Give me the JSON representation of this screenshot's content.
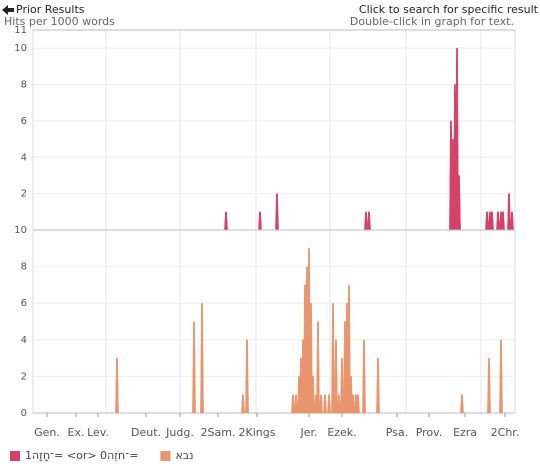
{
  "toolbar": {
    "back": "Prior Results",
    "hint": "Click to search for specific result",
    "note": "Double-click in graph for text."
  },
  "chart_data": [
    {
      "type": "spike",
      "ylabel": "Hits per 1000 words",
      "xlim": [
        0,
        482
      ],
      "ylim": [
        0,
        11
      ],
      "yticks": [
        2,
        4,
        6,
        8,
        10,
        11
      ],
      "xgrid": [
        73,
        147,
        223,
        297,
        373,
        448
      ],
      "series": [
        {
          "name": "1־חָזָה= <or> 0־חֹזֶה=",
          "color": "#d6416b",
          "x": [
            193,
            227,
            244,
            333,
            336,
            418,
            420,
            422,
            424,
            426,
            454,
            457,
            459,
            465,
            468,
            470,
            476,
            479
          ],
          "values": [
            1,
            1,
            2,
            1,
            1,
            6,
            5,
            8,
            10,
            3,
            1,
            1,
            1,
            1,
            1,
            1,
            2,
            1
          ]
        }
      ]
    },
    {
      "type": "spike",
      "xlim": [
        0,
        482
      ],
      "ylim": [
        0,
        10
      ],
      "yticks": [
        0,
        2,
        4,
        6,
        8,
        10
      ],
      "xgrid": [
        73,
        147,
        223,
        297,
        373,
        448
      ],
      "xticks": [
        {
          "value": 14,
          "label": "Gen."
        },
        {
          "value": 43,
          "label": "Ex."
        },
        {
          "value": 65,
          "label": "Lev."
        },
        {
          "value": 113,
          "label": "Deut."
        },
        {
          "value": 147,
          "label": "Judg."
        },
        {
          "value": 185,
          "label": "2Sam."
        },
        {
          "value": 224,
          "label": "2Kings"
        },
        {
          "value": 276,
          "label": "Jer."
        },
        {
          "value": 309,
          "label": "Ezek."
        },
        {
          "value": 364,
          "label": "Psa."
        },
        {
          "value": 396,
          "label": "Prov."
        },
        {
          "value": 432,
          "label": "Ezra"
        },
        {
          "value": 472,
          "label": "2Chr."
        }
      ],
      "series": [
        {
          "name": "נבא",
          "color": "#e8956e",
          "x": [
            84,
            161,
            169,
            210,
            214,
            260,
            263,
            266,
            268,
            270,
            272,
            274,
            276,
            278,
            280,
            283,
            285,
            288,
            292,
            296,
            300,
            303,
            306,
            309,
            312,
            314,
            316,
            318,
            320,
            323,
            325,
            331,
            345,
            429,
            456,
            468
          ],
          "values": [
            3,
            5,
            6,
            1,
            4,
            1,
            1,
            2,
            3,
            4,
            7,
            8,
            9,
            6,
            2,
            1,
            5,
            1,
            1,
            1,
            6,
            4,
            1,
            3,
            5,
            6,
            7,
            2,
            1,
            1,
            1,
            4,
            3,
            1,
            3,
            4
          ]
        }
      ]
    }
  ]
}
